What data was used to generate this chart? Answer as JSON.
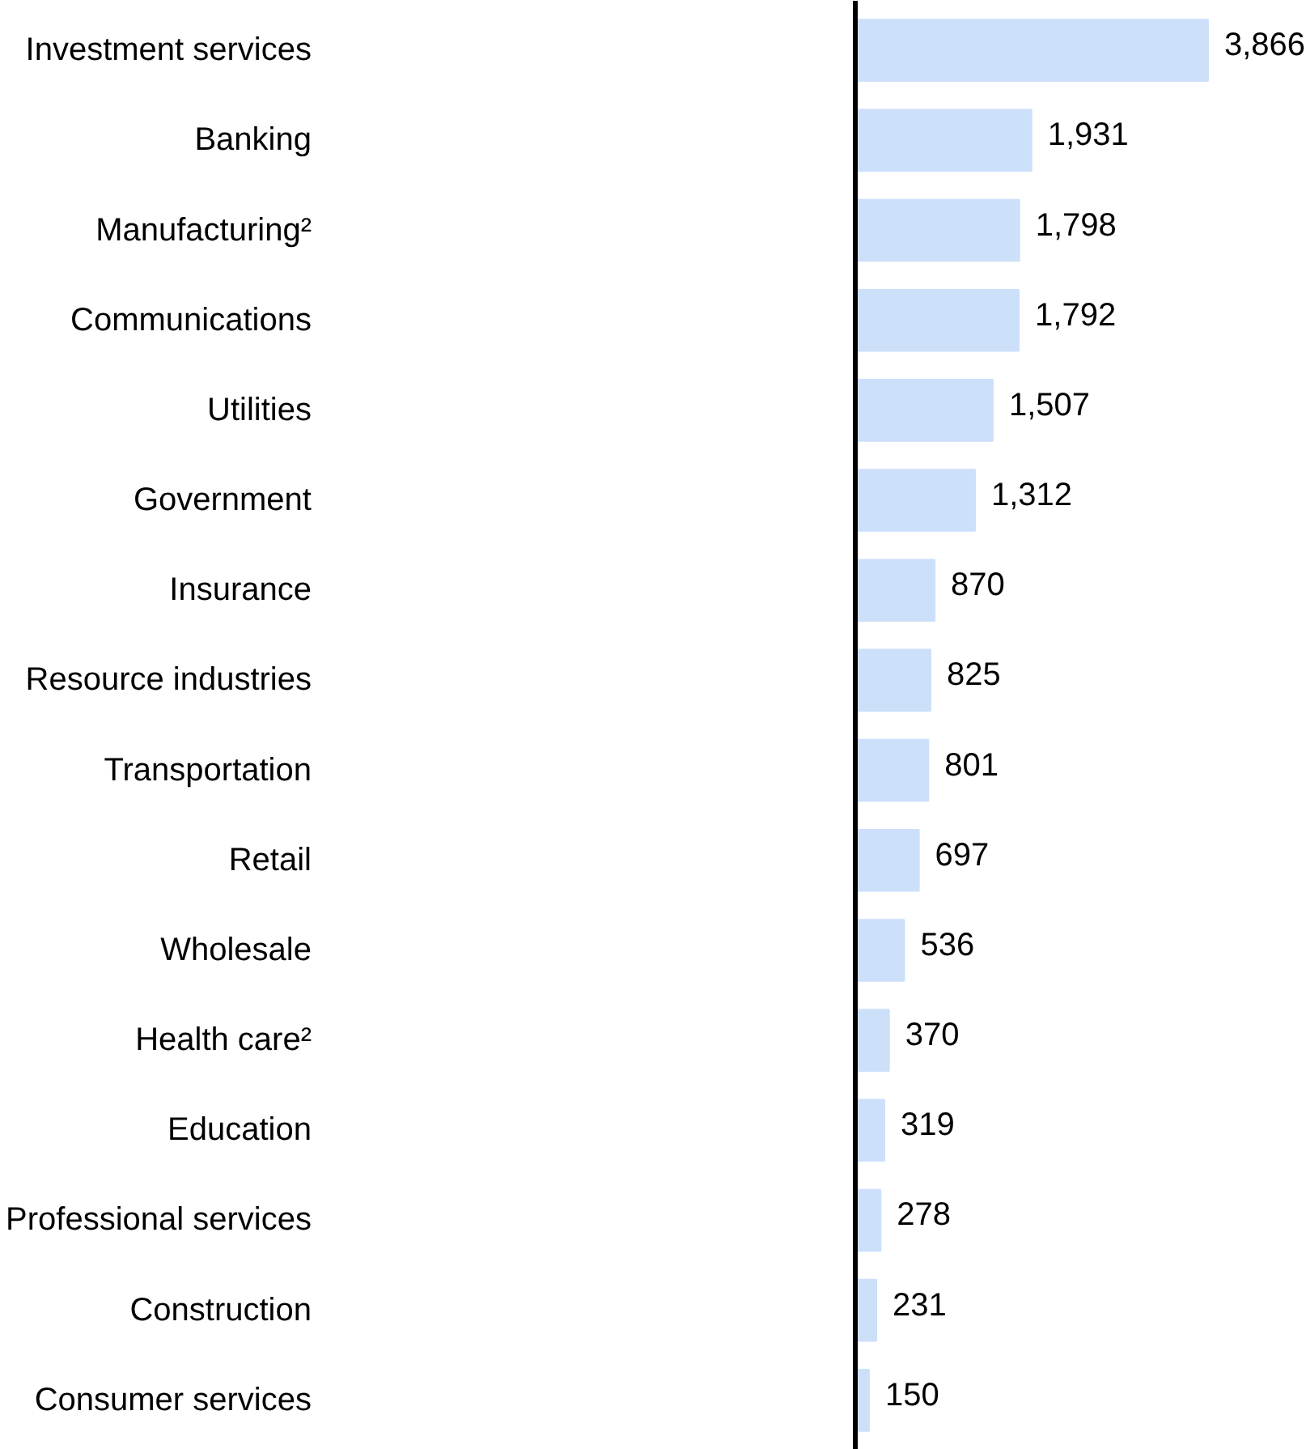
{
  "chart_data": {
    "type": "bar",
    "orientation": "horizontal",
    "categories": [
      "Investment services",
      "Banking",
      "Manufacturing²",
      "Communications",
      "Utilities",
      "Government",
      "Insurance",
      "Resource industries",
      "Transportation",
      "Retail",
      "Wholesale",
      "Health care²",
      "Education",
      "Professional services",
      "Construction",
      "Consumer services"
    ],
    "values": [
      3866,
      1931,
      1798,
      1792,
      1507,
      1312,
      870,
      825,
      801,
      697,
      536,
      370,
      319,
      278,
      231,
      150
    ],
    "color": "#cce0fa",
    "value_labels": [
      "3,866",
      "1,931",
      "1,798",
      "1,792",
      "1,507",
      "1,312",
      "870",
      "825",
      "801",
      "697",
      "536",
      "370",
      "319",
      "278",
      "231",
      "150"
    ]
  }
}
